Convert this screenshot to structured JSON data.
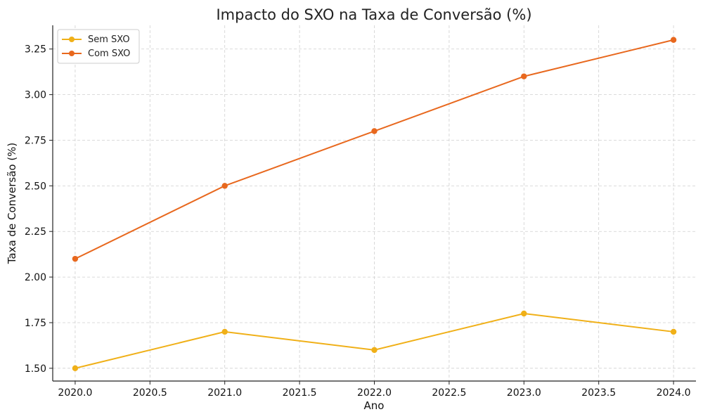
{
  "chart_data": {
    "type": "line",
    "title": "Impacto do SXO na Taxa de Conversão (%)",
    "xlabel": "Ano",
    "ylabel": "Taxa de Conversão (%)",
    "x": [
      2020,
      2021,
      2022,
      2023,
      2024
    ],
    "xlim": [
      2019.85,
      2024.15
    ],
    "ylim": [
      1.43,
      3.38
    ],
    "xticks": [
      "2020.0",
      "2020.5",
      "2021.0",
      "2021.5",
      "2022.0",
      "2022.5",
      "2023.0",
      "2023.5",
      "2024.0"
    ],
    "yticks": [
      "1.50",
      "1.75",
      "2.00",
      "2.25",
      "2.50",
      "2.75",
      "3.00",
      "3.25"
    ],
    "grid": true,
    "legend_position": "top-left",
    "series": [
      {
        "name": "Sem SXO",
        "color": "#f0b018",
        "values": [
          1.5,
          1.7,
          1.6,
          1.8,
          1.7
        ]
      },
      {
        "name": "Com SXO",
        "color": "#e8681e",
        "values": [
          2.1,
          2.5,
          2.8,
          3.1,
          3.3
        ]
      }
    ]
  }
}
